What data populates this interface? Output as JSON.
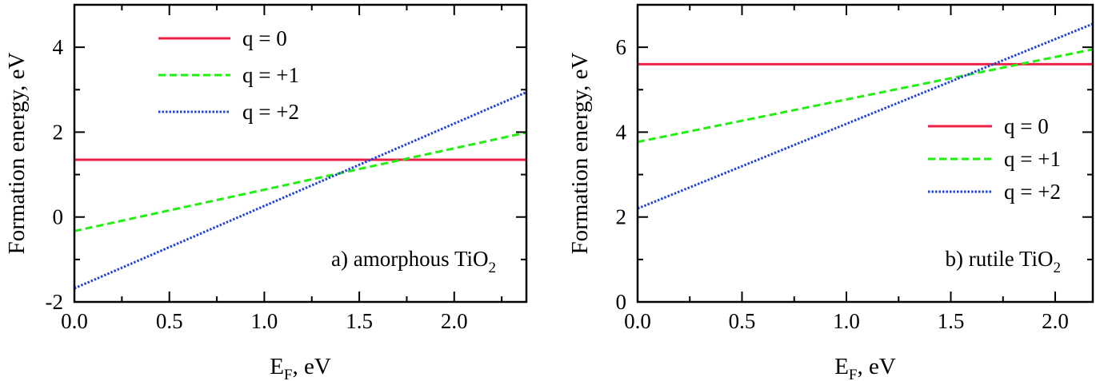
{
  "chart_data": [
    {
      "type": "line",
      "panel_label": "a) amorphous TiO",
      "panel_label_sub": "2",
      "xlabel_main": "E",
      "xlabel_sub": "F",
      "xlabel_rest": ", eV",
      "ylabel": "Formation energy, eV",
      "xlim": [
        0,
        2.38
      ],
      "ylim": [
        -2,
        5
      ],
      "xticks": [
        0.0,
        0.5,
        1.0,
        1.5,
        2.0
      ],
      "xtick_labels": [
        "0.0",
        "0.5",
        "1.0",
        "1.5",
        "2.0"
      ],
      "yticks": [
        -2,
        0,
        2,
        4
      ],
      "ytick_labels": [
        "-2",
        "0",
        "2",
        "4"
      ],
      "legend_position": "top-left",
      "series": [
        {
          "name": "q = 0",
          "x": [
            0,
            2.38
          ],
          "y": [
            1.35,
            1.35
          ],
          "color": "#ee2244",
          "dash": "solid"
        },
        {
          "name": "q = +1",
          "x": [
            0,
            2.38
          ],
          "y": [
            -0.33,
            1.99
          ],
          "color": "#22ee11",
          "dash": "dashed"
        },
        {
          "name": "q = +2",
          "x": [
            0,
            2.38
          ],
          "y": [
            -1.68,
            2.94
          ],
          "color": "#2244dd",
          "dash": "dotted"
        }
      ]
    },
    {
      "type": "line",
      "panel_label": "b) rutile TiO",
      "panel_label_sub": "2",
      "xlabel_main": "E",
      "xlabel_sub": "F",
      "xlabel_rest": ", eV",
      "ylabel": "Formation energy, eV",
      "xlim": [
        0,
        2.18
      ],
      "ylim": [
        0,
        7
      ],
      "xticks": [
        0.0,
        0.5,
        1.0,
        1.5,
        2.0
      ],
      "xtick_labels": [
        "0.0",
        "0.5",
        "1.0",
        "1.5",
        "2.0"
      ],
      "yticks": [
        0,
        2,
        4,
        6
      ],
      "ytick_labels": [
        "0",
        "2",
        "4",
        "6"
      ],
      "legend_position": "center-right",
      "series": [
        {
          "name": "q = 0",
          "x": [
            0,
            2.18
          ],
          "y": [
            5.6,
            5.6
          ],
          "color": "#ee2244",
          "dash": "solid"
        },
        {
          "name": "q = +1",
          "x": [
            0,
            2.18
          ],
          "y": [
            3.77,
            5.95
          ],
          "color": "#22ee11",
          "dash": "dashed"
        },
        {
          "name": "q = +2",
          "x": [
            0,
            2.18
          ],
          "y": [
            2.2,
            6.55
          ],
          "color": "#2244dd",
          "dash": "dotted"
        }
      ]
    }
  ]
}
